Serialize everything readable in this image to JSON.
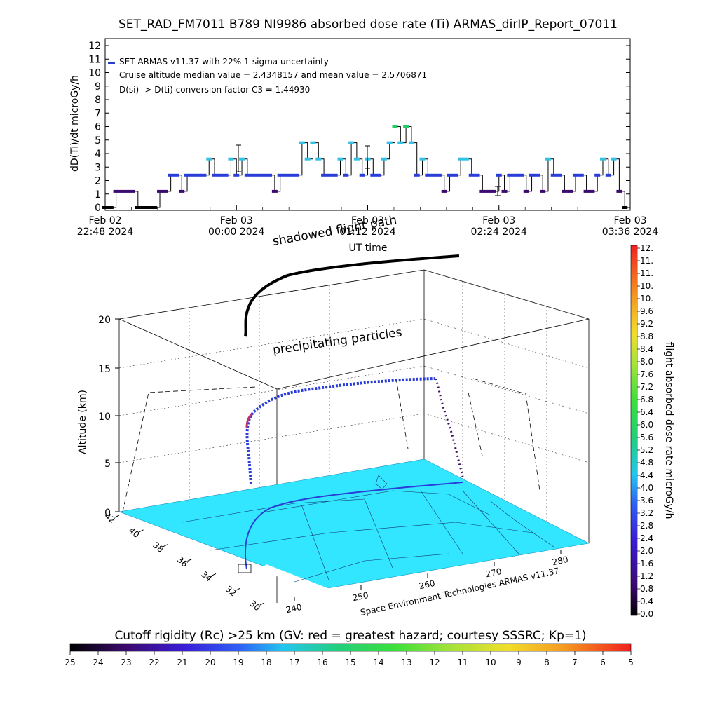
{
  "chart_data": [
    {
      "type": "line",
      "title": "SET_RAD_FM7011  B789 NI9986 absorbed dose rate (Ti) ARMAS_dirIP_Report_07011",
      "ylabel": "dD(Ti)/dt microGy/h",
      "xlabel": "UT time",
      "ylim": [
        0,
        12
      ],
      "y_ticks": [
        "0",
        "1",
        "2",
        "3",
        "4",
        "5",
        "6",
        "7",
        "8",
        "9",
        "10",
        "11",
        "12"
      ],
      "x_ticks": [
        {
          "date": "Feb 02",
          "time": "22:48 2024"
        },
        {
          "date": "Feb 03",
          "time": "00:00 2024"
        },
        {
          "date": "Feb 03",
          "time": "01:12 2024"
        },
        {
          "date": "Feb 03",
          "time": "02:24 2024"
        },
        {
          "date": "Feb 03",
          "time": "03:36 2024"
        }
      ],
      "annotations": [
        "SET ARMAS v11.37 with 22% 1-sigma uncertainty",
        "Cruise altitude median value = 2.4348157 and mean value = 2.5706871",
        "D(si) -> D(ti) conversion factor C3 = 1.44930"
      ],
      "x_minutes_from_start": [
        0,
        3,
        6,
        9,
        12,
        15,
        18,
        21,
        24,
        27,
        30,
        33,
        36,
        39,
        42,
        45,
        48,
        51,
        54,
        57,
        60,
        63,
        66,
        69,
        72,
        75,
        78,
        81,
        84,
        87,
        90,
        93,
        96,
        99,
        102,
        105,
        108,
        111,
        114,
        117,
        120,
        123,
        126,
        129,
        132,
        135,
        138,
        141,
        144,
        147,
        150,
        153,
        156,
        159,
        162,
        165,
        168,
        171,
        174,
        177,
        180,
        183,
        186,
        189,
        192,
        195,
        198,
        201,
        204,
        207,
        210,
        213,
        216,
        219,
        222,
        225,
        228,
        231,
        234,
        237,
        240,
        243,
        246,
        249,
        252,
        255,
        258,
        261,
        264,
        267,
        270,
        273,
        276,
        279,
        282,
        285
      ],
      "series": [
        {
          "name": "SET ARMAS v11.37 with 22% 1-sigma uncertainty",
          "values": [
            0,
            0,
            1.2,
            1.2,
            1.2,
            1.2,
            0,
            0,
            0,
            0,
            1.2,
            1.2,
            2.4,
            2.4,
            1.2,
            2.4,
            2.4,
            2.4,
            2.4,
            3.6,
            2.4,
            2.4,
            2.4,
            3.6,
            2.4,
            3.6,
            2.4,
            2.4,
            2.4,
            2.4,
            2.4,
            1.2,
            2.4,
            2.4,
            2.4,
            2.4,
            4.8,
            3.6,
            4.8,
            3.6,
            2.4,
            2.4,
            2.4,
            3.6,
            2.4,
            4.8,
            3.6,
            2.4,
            3.6,
            2.4,
            2.4,
            3.6,
            4.8,
            6.0,
            4.8,
            6.0,
            4.8,
            2.4,
            3.6,
            2.4,
            2.4,
            2.4,
            1.2,
            2.4,
            2.4,
            3.6,
            3.6,
            2.4,
            2.4,
            1.2,
            1.2,
            1.2,
            2.4,
            1.2,
            2.4,
            2.4,
            2.4,
            1.2,
            2.4,
            2.4,
            1.2,
            3.6,
            2.4,
            2.4,
            1.2,
            1.2,
            2.4,
            2.4,
            1.2,
            1.2,
            2.4,
            3.6,
            2.4,
            3.6,
            1.2,
            0
          ]
        }
      ]
    },
    {
      "type": "scatter",
      "subtitle": "precipitating particles",
      "ylabel": "Altitude (km)",
      "z_ticks": [
        "0",
        "5",
        "10",
        "15",
        "20"
      ],
      "lat_ticks": [
        "42",
        "40",
        "38",
        "36",
        "34",
        "32",
        "30"
      ],
      "lon_ticks": [
        "240",
        "250",
        "260",
        "270",
        "280"
      ],
      "top_plane_label": "shadowed flight path",
      "credit": "Space Environment Technologies ARMAS v11.37",
      "colorbar": {
        "label": "flight absorbed dose rate microGy/h",
        "ticks": [
          "0.0",
          "0.4",
          "0.8",
          "1.2",
          "1.6",
          "2.0",
          "2.4",
          "2.8",
          "3.2",
          "3.6",
          "4.0",
          "4.4",
          "4.8",
          "5.2",
          "5.6",
          "6.0",
          "6.4",
          "6.8",
          "7.2",
          "7.6",
          "8.0",
          "8.4",
          "8.8",
          "9.2",
          "9.6",
          "10.",
          "10.",
          "11.",
          "11.",
          "12."
        ]
      }
    },
    {
      "type": "heatmap",
      "title": "Cutoff rigidity (Rc) >25 km (GV: red = greatest hazard; courtesy SSSRC; Kp=1)",
      "ticks": [
        "25",
        "24",
        "23",
        "22",
        "21",
        "20",
        "19",
        "18",
        "17",
        "16",
        "15",
        "14",
        "13",
        "12",
        "11",
        "10",
        "9",
        "8",
        "7",
        "6",
        "5"
      ]
    }
  ],
  "colors": {
    "map_fill": "#33e6ff",
    "track_dark": "#000000",
    "track_blue": "#2a3dd8",
    "point_cyan": "#33c2e6",
    "point_green": "#22cc66",
    "axis": "#000000"
  }
}
